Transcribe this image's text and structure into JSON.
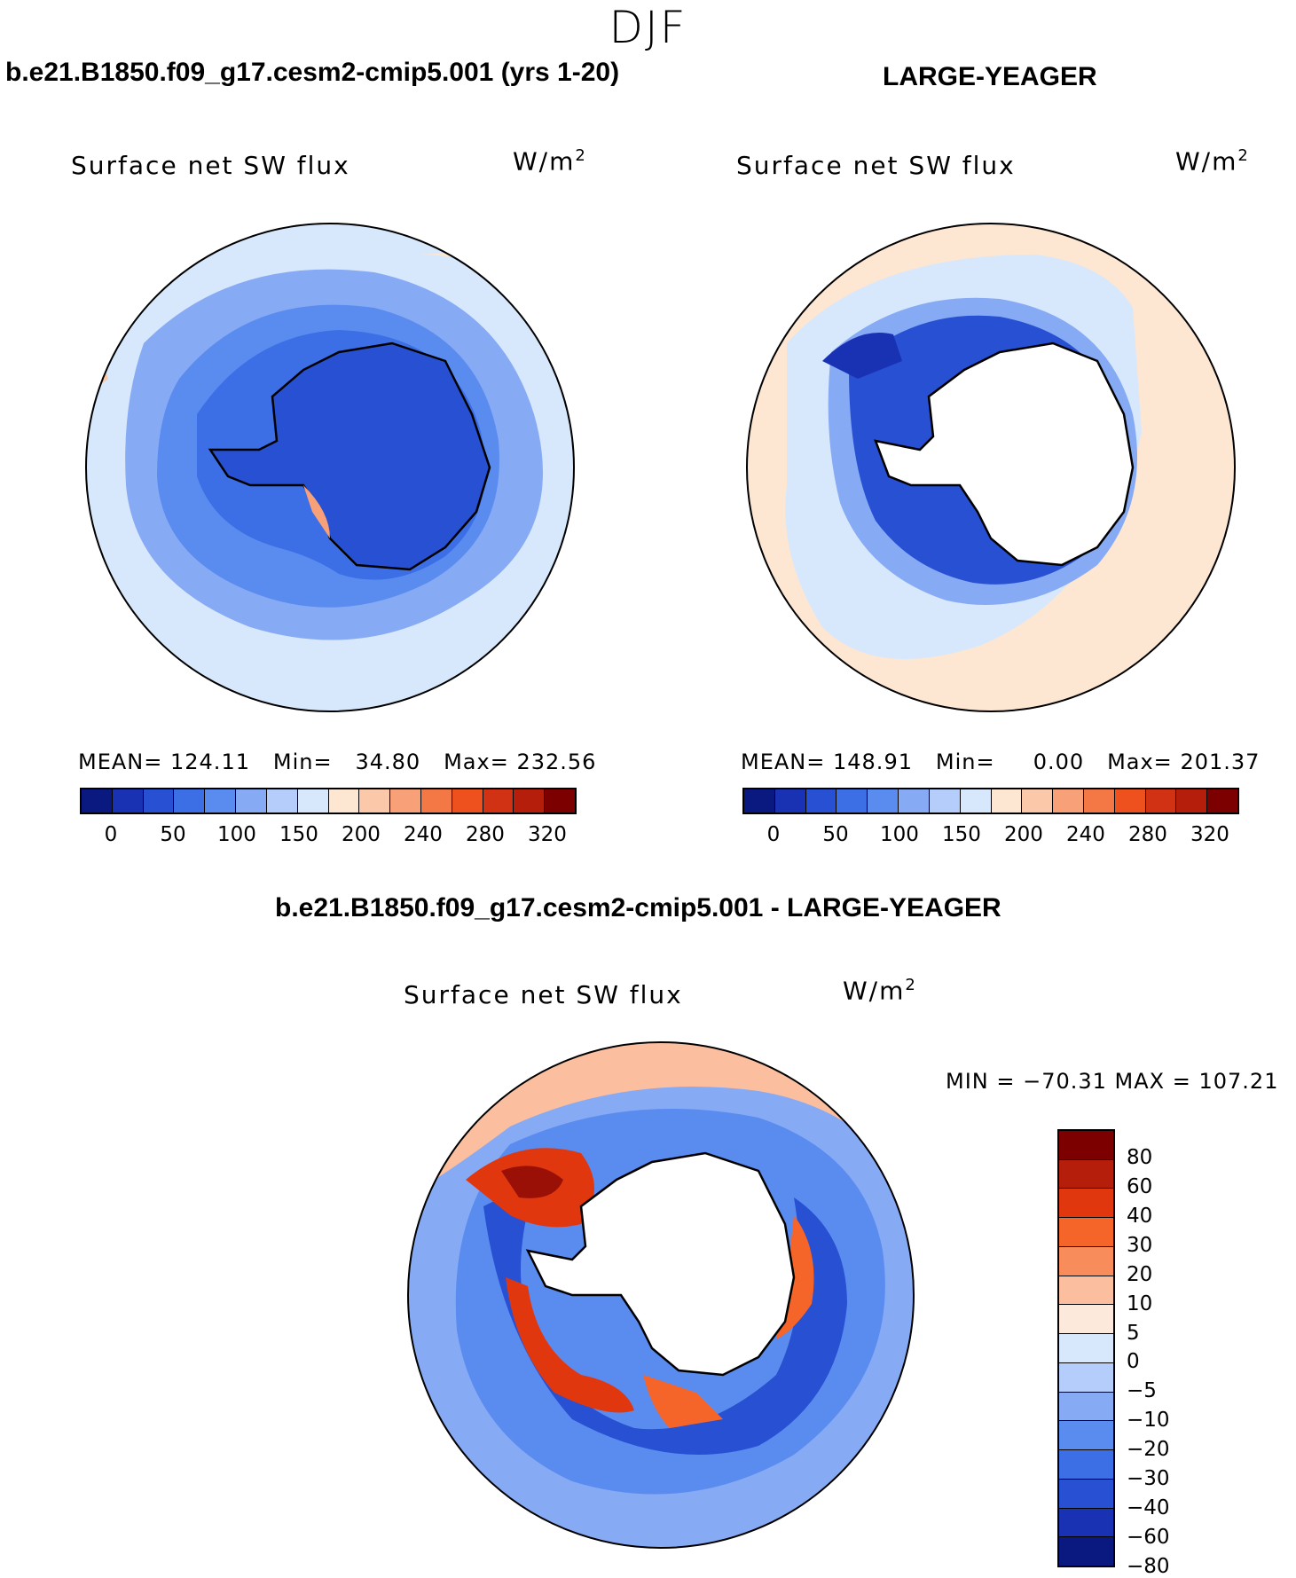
{
  "season": "DJF",
  "left_title": "b.e21.B1850.f09_g17.cesm2-cmip5.001 (yrs 1-20)",
  "right_title": "LARGE-YEAGER",
  "diff_title": "b.e21.B1850.f09_g17.cesm2-cmip5.001 - LARGE-YEAGER",
  "variable_label": "Surface net SW flux",
  "units": "W/m",
  "units_exp": "2",
  "panels": {
    "left": {
      "mean_label": "MEAN=",
      "mean": "124.11",
      "min_label": "Min=",
      "min": "34.80",
      "max_label": "Max=",
      "max": "232.56"
    },
    "right": {
      "mean_label": "MEAN=",
      "mean": "148.91",
      "min_label": "Min=",
      "min": "0.00",
      "max_label": "Max=",
      "max": "201.37"
    },
    "diff": {
      "minmax_text": "MIN = −70.31 MAX = 107.21"
    }
  },
  "colorbar_abs": {
    "colors": [
      "#0a1980",
      "#1932b4",
      "#2850d2",
      "#3c6ee6",
      "#5a8cf0",
      "#87aaf5",
      "#b4cdfa",
      "#d7e8fc",
      "#fde6d2",
      "#fbc8aa",
      "#f8a078",
      "#f47846",
      "#ee501e",
      "#d23214",
      "#b41e0a",
      "#7d0000"
    ],
    "labels": [
      "0",
      "50",
      "100",
      "150",
      "200",
      "240",
      "280",
      "320"
    ]
  },
  "colorbar_diff": {
    "colors": [
      "#7d0000",
      "#b41e0a",
      "#e0370f",
      "#f56428",
      "#f88c5a",
      "#fbbfa0",
      "#fde9dc",
      "#d7e8fc",
      "#b4cdfa",
      "#87aaf5",
      "#5a8cf0",
      "#3c6ee6",
      "#2850d2",
      "#1932b4",
      "#0a1980"
    ],
    "labels": [
      "80",
      "60",
      "40",
      "30",
      "20",
      "10",
      "5",
      "0",
      "−5",
      "−10",
      "−20",
      "−30",
      "−40",
      "−60",
      "−80"
    ]
  },
  "colors": {
    "pale_blue": "#d7e8fc",
    "light_blue": "#b4cdfa",
    "mid_blue": "#87aaf5",
    "blue": "#5a8cf0",
    "strong_blue": "#3c6ee6",
    "deep_blue": "#2850d2",
    "navy": "#1932b4",
    "peach": "#fde6d2",
    "light_orange": "#fbbfa0",
    "orange": "#f56428",
    "red": "#e0370f",
    "dark_red": "#9a1006"
  }
}
